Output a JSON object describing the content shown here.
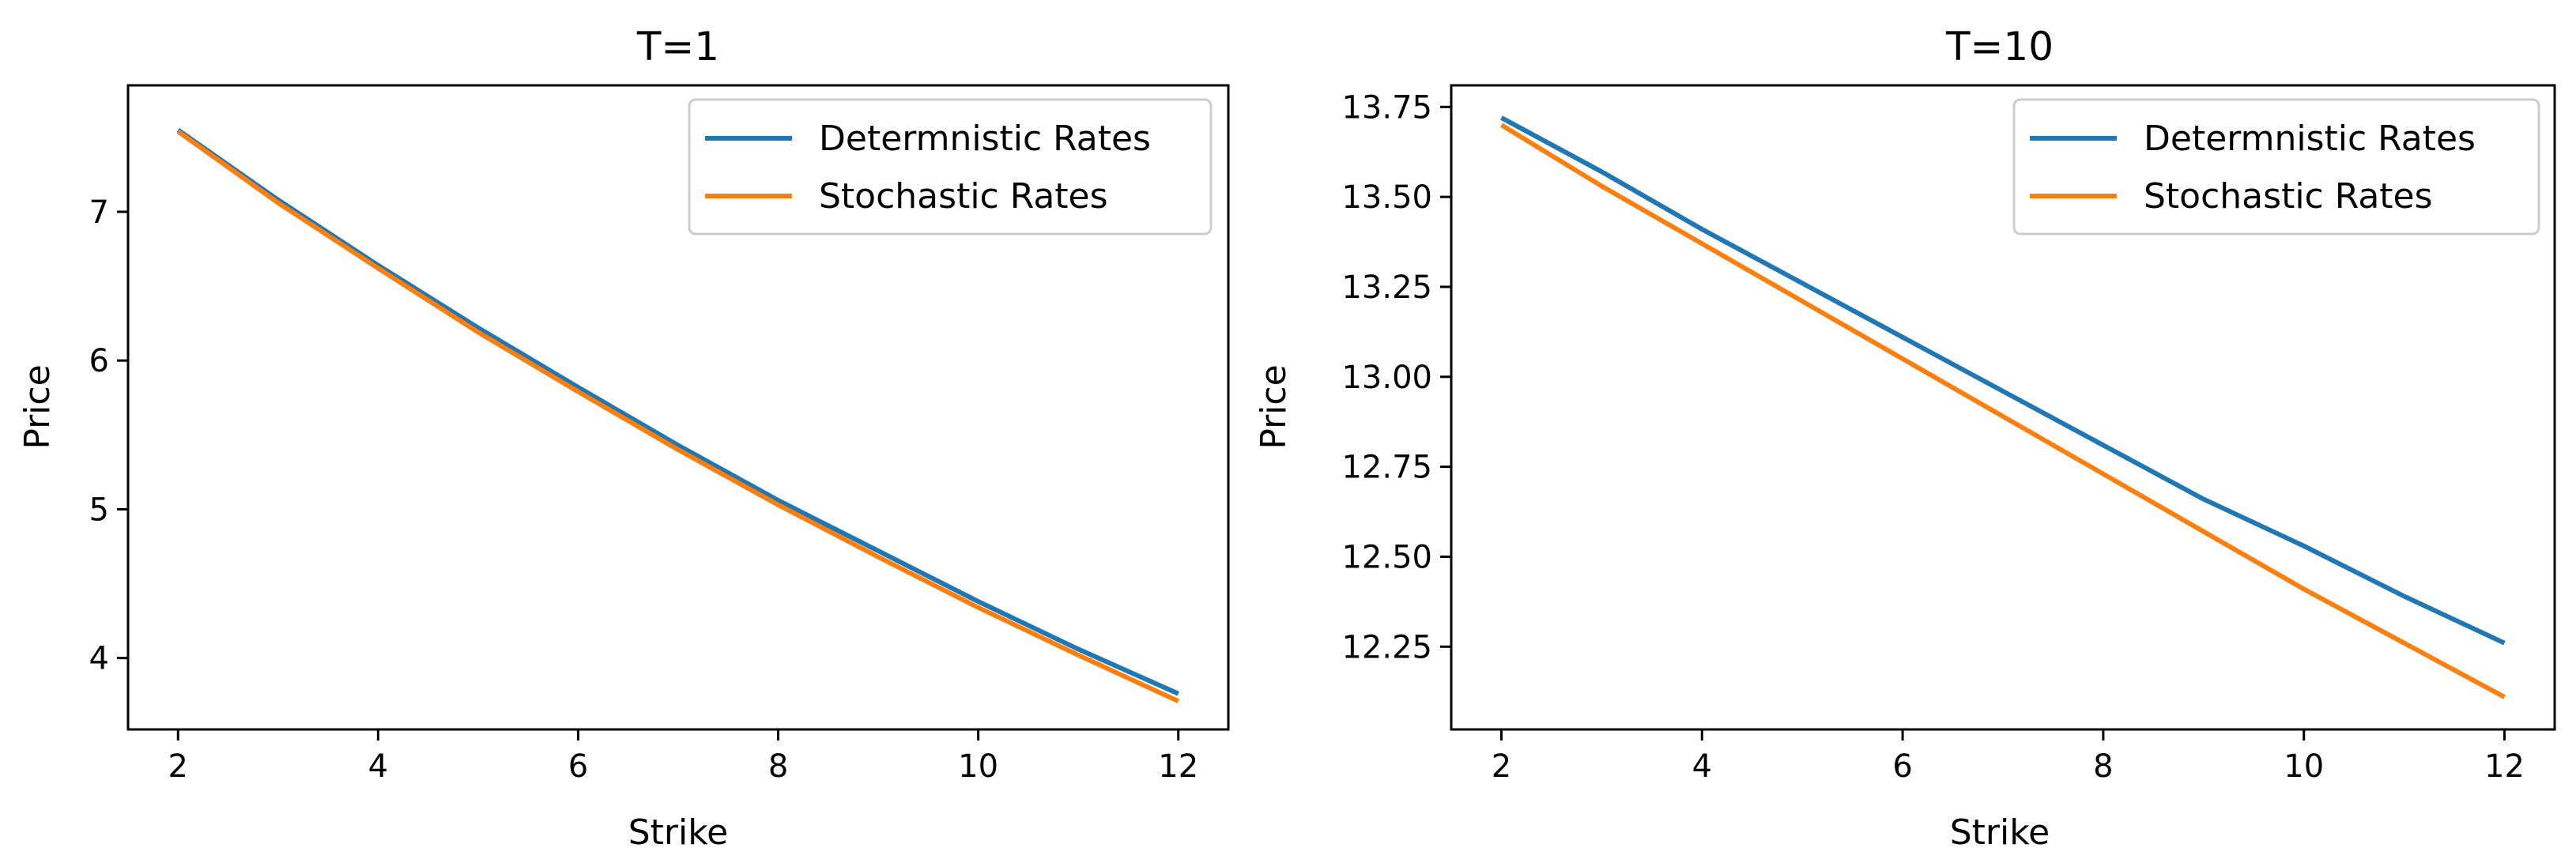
{
  "chart_data": [
    {
      "type": "line",
      "title": "T=1",
      "xlabel": "Strike",
      "ylabel": "Price",
      "xlim": [
        1.5,
        12.5
      ],
      "ylim": [
        3.52,
        7.85
      ],
      "xticks": [
        2,
        4,
        6,
        8,
        10,
        12
      ],
      "xtick_labels": [
        "2",
        "4",
        "6",
        "8",
        "10",
        "12"
      ],
      "yticks": [
        4,
        5,
        6,
        7
      ],
      "ytick_labels": [
        "4",
        "5",
        "6",
        "7"
      ],
      "legend_position": "upper right",
      "grid": false,
      "x": [
        2,
        3,
        4,
        5,
        6,
        7,
        8,
        9,
        10,
        11,
        12
      ],
      "series": [
        {
          "name": "Determnistic Rates",
          "color": "#1f77b4",
          "values": [
            7.55,
            7.08,
            6.64,
            6.22,
            5.82,
            5.43,
            5.06,
            4.72,
            4.38,
            4.06,
            3.76
          ]
        },
        {
          "name": "Stochastic Rates",
          "color": "#ff7f0e",
          "values": [
            7.54,
            7.06,
            6.62,
            6.19,
            5.79,
            5.4,
            5.03,
            4.68,
            4.34,
            4.02,
            3.71
          ]
        }
      ]
    },
    {
      "type": "line",
      "title": "T=10",
      "xlabel": "Strike",
      "ylabel": "Price",
      "xlim": [
        1.5,
        12.5
      ],
      "ylim": [
        12.02,
        13.81
      ],
      "xticks": [
        2,
        4,
        6,
        8,
        10,
        12
      ],
      "xtick_labels": [
        "2",
        "4",
        "6",
        "8",
        "10",
        "12"
      ],
      "yticks": [
        12.25,
        12.5,
        12.75,
        13.0,
        13.25,
        13.5,
        13.75
      ],
      "ytick_labels": [
        "12.25",
        "12.50",
        "12.75",
        "13.00",
        "13.25",
        "13.50",
        "13.75"
      ],
      "legend_position": "upper right",
      "grid": false,
      "x": [
        2,
        3,
        4,
        5,
        6,
        7,
        8,
        9,
        10,
        11,
        12
      ],
      "series": [
        {
          "name": "Determnistic Rates",
          "color": "#1f77b4",
          "values": [
            13.72,
            13.57,
            13.41,
            13.26,
            13.11,
            12.96,
            12.81,
            12.66,
            12.53,
            12.39,
            12.26
          ]
        },
        {
          "name": "Stochastic Rates",
          "color": "#ff7f0e",
          "values": [
            13.7,
            13.53,
            13.37,
            13.21,
            13.05,
            12.89,
            12.73,
            12.57,
            12.41,
            12.26,
            12.11
          ]
        }
      ]
    }
  ]
}
